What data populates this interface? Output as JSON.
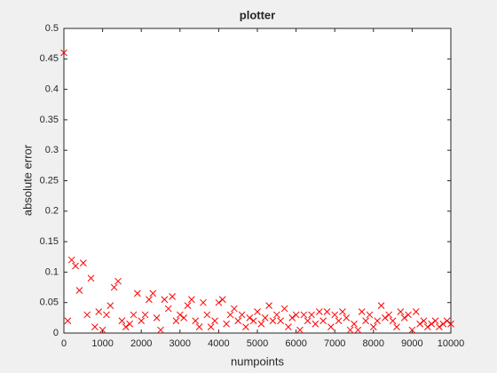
{
  "chart_data": {
    "type": "scatter",
    "title": "plotter",
    "xlabel": "numpoints",
    "ylabel": "absolute error",
    "series": [
      {
        "name": "absolute error",
        "color": "#ff0000",
        "marker": "x",
        "x": [
          0,
          100,
          200,
          300,
          400,
          500,
          600,
          700,
          800,
          900,
          1000,
          1100,
          1200,
          1300,
          1400,
          1500,
          1600,
          1700,
          1800,
          1900,
          2000,
          2100,
          2200,
          2300,
          2400,
          2500,
          2600,
          2700,
          2800,
          2900,
          3000,
          3100,
          3200,
          3300,
          3400,
          3500,
          3600,
          3700,
          3800,
          3900,
          4000,
          4100,
          4200,
          4300,
          4400,
          4500,
          4600,
          4700,
          4800,
          4900,
          5000,
          5100,
          5200,
          5300,
          5400,
          5500,
          5600,
          5700,
          5800,
          5900,
          6000,
          6100,
          6200,
          6300,
          6400,
          6500,
          6600,
          6700,
          6800,
          6900,
          7000,
          7100,
          7200,
          7300,
          7400,
          7500,
          7600,
          7700,
          7800,
          7900,
          8000,
          8100,
          8200,
          8300,
          8400,
          8500,
          8600,
          8700,
          8800,
          8900,
          9000,
          9100,
          9200,
          9300,
          9400,
          9500,
          9600,
          9700,
          9800,
          9900,
          10000
        ],
        "values": [
          0.46,
          0.02,
          0.12,
          0.11,
          0.07,
          0.115,
          0.03,
          0.09,
          0.01,
          0.035,
          0.005,
          0.03,
          0.045,
          0.075,
          0.085,
          0.02,
          0.01,
          0.015,
          0.03,
          0.065,
          0.02,
          0.03,
          0.055,
          0.065,
          0.025,
          0.005,
          0.055,
          0.04,
          0.06,
          0.02,
          0.03,
          0.025,
          0.045,
          0.055,
          0.02,
          0.01,
          0.05,
          0.03,
          0.01,
          0.02,
          0.05,
          0.055,
          0.015,
          0.03,
          0.04,
          0.02,
          0.03,
          0.01,
          0.025,
          0.02,
          0.035,
          0.015,
          0.025,
          0.045,
          0.02,
          0.03,
          0.02,
          0.04,
          0.01,
          0.025,
          0.03,
          0.005,
          0.03,
          0.02,
          0.03,
          0.015,
          0.035,
          0.02,
          0.035,
          0.01,
          0.03,
          0.02,
          0.035,
          0.025,
          0.005,
          0.015,
          0.005,
          0.035,
          0.02,
          0.03,
          0.01,
          0.02,
          0.045,
          0.025,
          0.03,
          0.02,
          0.01,
          0.035,
          0.025,
          0.03,
          0.005,
          0.035,
          0.015,
          0.02,
          0.01,
          0.015,
          0.02,
          0.01,
          0.015,
          0.02,
          0.015
        ]
      }
    ],
    "xlim": [
      0,
      10000
    ],
    "xticks": [
      0,
      1000,
      2000,
      3000,
      4000,
      5000,
      6000,
      7000,
      8000,
      9000,
      10000
    ],
    "ylim": [
      0,
      0.5
    ],
    "yticks": [
      0,
      0.05,
      0.1,
      0.15,
      0.2,
      0.25,
      0.3,
      0.35,
      0.4,
      0.45,
      0.5
    ],
    "grid": false
  }
}
